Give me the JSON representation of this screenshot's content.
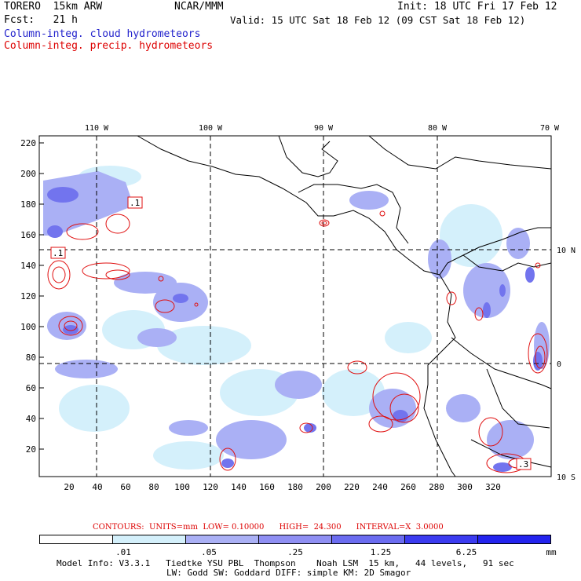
{
  "header": {
    "title": "TORERO  15km ARW",
    "org": "NCAR/MMM",
    "init": "Init: 18 UTC Fri 17 Feb 12",
    "fcst": "Fcst:   21 h",
    "valid": "Valid: 15 UTC Sat 18 Feb 12 (09 CST Sat 18 Feb 12)",
    "legend_cloud": "Column-integ. cloud hydrometeors",
    "legend_precip": "Column-integ. precip. hydrometeors"
  },
  "map": {
    "top_lon_labels": [
      "110 W",
      "100 W",
      "90 W",
      "80 W",
      "70 W"
    ],
    "right_lat_labels": [
      "10 N",
      "0",
      "10 S"
    ],
    "y_grid_labels": [
      "220",
      "200",
      "180",
      "160",
      "140",
      "120",
      "100",
      "80",
      "60",
      "40",
      "20"
    ],
    "x_grid_labels": [
      "20",
      "40",
      "60",
      "80",
      "100",
      "120",
      "140",
      "160",
      "180",
      "200",
      "220",
      "240",
      "260",
      "280",
      "300",
      "320"
    ],
    "contour_labels": [
      ".1",
      ".1",
      ".3"
    ],
    "colors": {
      "cloud_light": "#cfe9fb",
      "cloud_mid": "#a9adf3",
      "cloud_dark": "#7274ee",
      "precip_contour": "#e01010",
      "coastline": "#000000"
    }
  },
  "footer": {
    "contours_line": "CONTOURS:  UNITS=mm  LOW= 0.10000      HIGH=  24.300      INTERVAL=X  3.0000",
    "colorbar_labels": [
      ".01",
      ".05",
      ".25",
      "1.25",
      "6.25",
      "mm"
    ],
    "colorbar_colors": [
      "#ffffff",
      "#d4f0fb",
      "#aab0f5",
      "#8f8ff3",
      "#6b6cf0",
      "#3b3bf0",
      "#2323ee"
    ],
    "model_info_1": "Model Info: V3.3.1   Tiedtke YSU PBL  Thompson    Noah LSM  15 km,   44 levels,   91 sec",
    "model_info_2": "LW: Godd SW: Goddard DIFF: simple KM: 2D Smagor"
  }
}
